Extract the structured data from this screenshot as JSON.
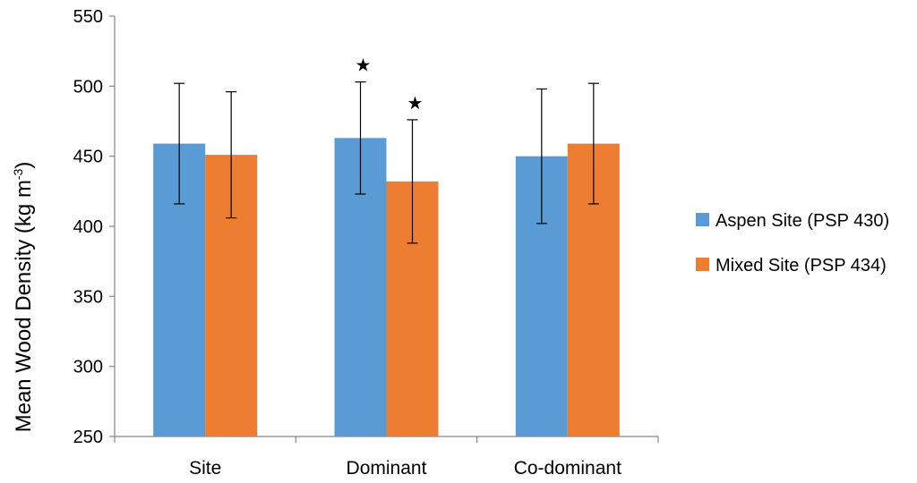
{
  "chart_data": {
    "type": "bar",
    "title": "",
    "xlabel": "",
    "ylabel": {
      "main": "Mean Wood Density (kg m",
      "sup": "-3",
      "tail": ")"
    },
    "ylim": [
      250,
      550
    ],
    "yticks": [
      250,
      300,
      350,
      400,
      450,
      500,
      550
    ],
    "categories": [
      "Site",
      "Dominant",
      "Co-dominant"
    ],
    "series": [
      {
        "name": "Aspen Site (PSP 430)",
        "color": "#5B9BD5",
        "values": [
          459,
          463,
          450
        ],
        "error": [
          43,
          40,
          48
        ]
      },
      {
        "name": "Mixed Site (PSP 434)",
        "color": "#ED7D31",
        "values": [
          451,
          432,
          459
        ],
        "error": [
          45,
          44,
          43
        ]
      }
    ],
    "annotations": [
      {
        "symbol": "★",
        "category": "Dominant",
        "series": "Aspen Site (PSP 430)"
      },
      {
        "symbol": "★",
        "category": "Dominant",
        "series": "Mixed Site (PSP 434)"
      }
    ],
    "grid": false,
    "legend": "right"
  }
}
